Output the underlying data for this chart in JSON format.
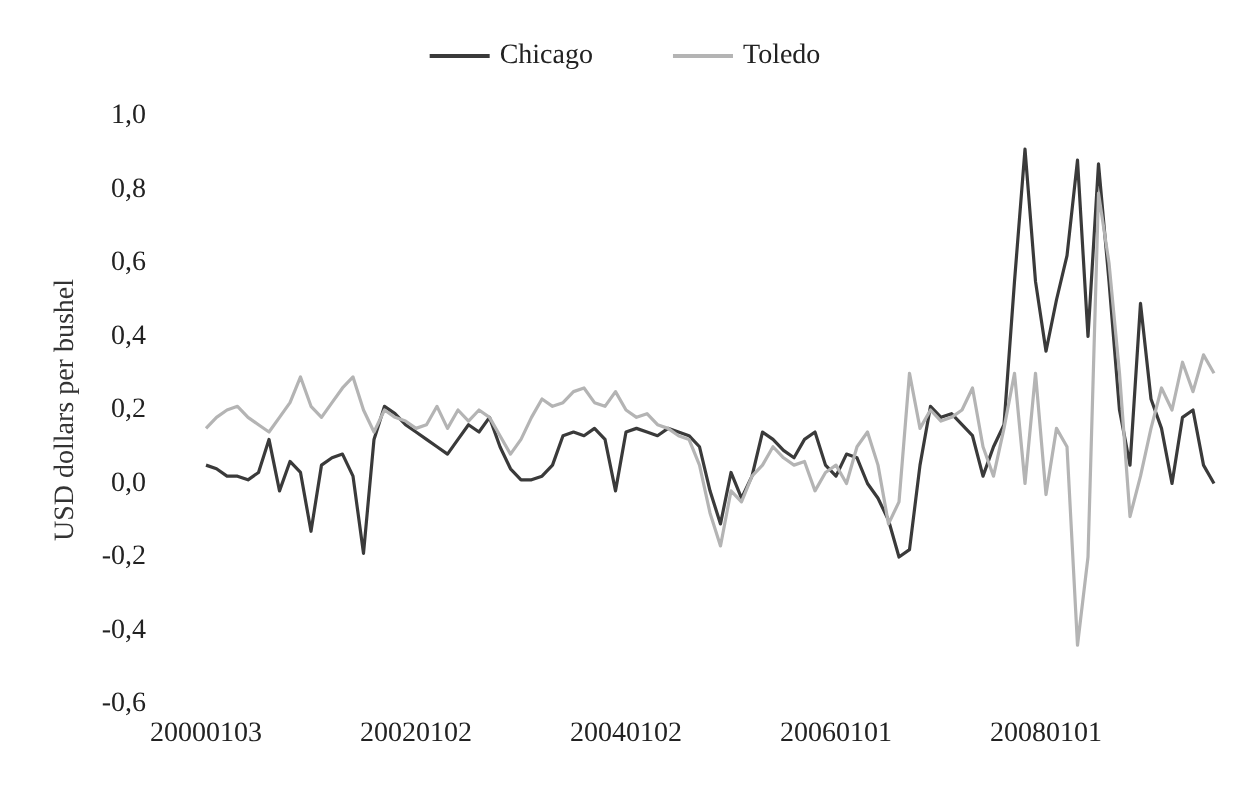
{
  "chart_data": {
    "type": "line",
    "ylabel": "USD dollars per bushel",
    "categories": [
      "20000103",
      null,
      null,
      null,
      null,
      null,
      null,
      null,
      null,
      null,
      null,
      null,
      null,
      null,
      null,
      null,
      null,
      null,
      null,
      null,
      "20020102",
      null,
      null,
      null,
      null,
      null,
      null,
      null,
      null,
      null,
      null,
      null,
      null,
      null,
      null,
      null,
      null,
      null,
      null,
      null,
      "20040102",
      null,
      null,
      null,
      null,
      null,
      null,
      null,
      null,
      null,
      null,
      null,
      null,
      null,
      null,
      null,
      null,
      null,
      null,
      null,
      "20060101",
      null,
      null,
      null,
      null,
      null,
      null,
      null,
      null,
      null,
      null,
      null,
      null,
      null,
      null,
      null,
      null,
      null,
      null,
      null,
      "20080101",
      null,
      null,
      null,
      null,
      null,
      null,
      null,
      null,
      null,
      null,
      null,
      null,
      null,
      null,
      null,
      null
    ],
    "series": [
      {
        "name": "Chicago",
        "color": "#3a3a3a",
        "values": [
          0.05,
          0.04,
          0.02,
          0.02,
          0.01,
          0.03,
          0.12,
          -0.02,
          0.06,
          0.03,
          -0.13,
          0.05,
          0.07,
          0.08,
          0.02,
          -0.19,
          0.12,
          0.21,
          0.19,
          0.16,
          0.14,
          0.12,
          0.1,
          0.08,
          0.12,
          0.16,
          0.14,
          0.18,
          0.1,
          0.04,
          0.01,
          0.01,
          0.02,
          0.05,
          0.13,
          0.14,
          0.13,
          0.15,
          0.12,
          -0.02,
          0.14,
          0.15,
          0.14,
          0.13,
          0.15,
          0.14,
          0.13,
          0.1,
          -0.02,
          -0.11,
          0.03,
          -0.04,
          0.02,
          0.14,
          0.12,
          0.09,
          0.07,
          0.12,
          0.14,
          0.05,
          0.02,
          0.08,
          0.07,
          0.0,
          -0.04,
          -0.1,
          -0.2,
          -0.18,
          0.05,
          0.21,
          0.18,
          0.19,
          0.16,
          0.13,
          0.02,
          0.1,
          0.16,
          0.55,
          0.91,
          0.55,
          0.36,
          0.5,
          0.62,
          0.88,
          0.4,
          0.87,
          0.55,
          0.2,
          0.05,
          0.49,
          0.23,
          0.15,
          0.0,
          0.18,
          0.2,
          0.05,
          0.0
        ]
      },
      {
        "name": "Toledo",
        "color": "#b4b4b4",
        "values": [
          0.15,
          0.18,
          0.2,
          0.21,
          0.18,
          0.16,
          0.14,
          0.18,
          0.22,
          0.29,
          0.21,
          0.18,
          0.22,
          0.26,
          0.29,
          0.2,
          0.14,
          0.2,
          0.18,
          0.17,
          0.15,
          0.16,
          0.21,
          0.15,
          0.2,
          0.17,
          0.2,
          0.18,
          0.13,
          0.08,
          0.12,
          0.18,
          0.23,
          0.21,
          0.22,
          0.25,
          0.26,
          0.22,
          0.21,
          0.25,
          0.2,
          0.18,
          0.19,
          0.16,
          0.15,
          0.13,
          0.12,
          0.05,
          -0.08,
          -0.17,
          -0.02,
          -0.05,
          0.02,
          0.05,
          0.1,
          0.07,
          0.05,
          0.06,
          -0.02,
          0.03,
          0.05,
          0.0,
          0.1,
          0.14,
          0.05,
          -0.11,
          -0.05,
          0.3,
          0.15,
          0.2,
          0.17,
          0.18,
          0.2,
          0.26,
          0.1,
          0.02,
          0.15,
          0.3,
          0.0,
          0.3,
          -0.03,
          0.15,
          0.1,
          -0.44,
          -0.2,
          0.79,
          0.6,
          0.3,
          -0.09,
          0.02,
          0.15,
          0.26,
          0.2,
          0.33,
          0.25,
          0.35,
          0.3
        ]
      }
    ],
    "ylim": [
      -0.6,
      1.0
    ],
    "yticks": [
      {
        "value": -0.6,
        "label": "-0,6"
      },
      {
        "value": -0.4,
        "label": "-0,4"
      },
      {
        "value": -0.2,
        "label": "-0,2"
      },
      {
        "value": 0,
        "label": "0,0"
      },
      {
        "value": 0.2,
        "label": "0,2"
      },
      {
        "value": 0.4,
        "label": "0,4"
      },
      {
        "value": 0.6,
        "label": "0,6"
      },
      {
        "value": 0.8,
        "label": "0,8"
      },
      {
        "value": 1.0,
        "label": "1,0"
      }
    ],
    "legend": "top",
    "grid": false,
    "marker": "none",
    "line_style": "solid"
  }
}
